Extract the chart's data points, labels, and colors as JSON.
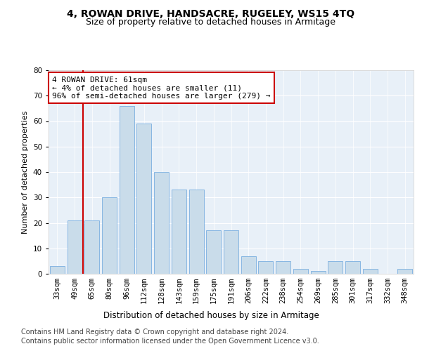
{
  "title": "4, ROWAN DRIVE, HANDSACRE, RUGELEY, WS15 4TQ",
  "subtitle": "Size of property relative to detached houses in Armitage",
  "xlabel": "Distribution of detached houses by size in Armitage",
  "ylabel": "Number of detached properties",
  "categories": [
    "33sqm",
    "49sqm",
    "65sqm",
    "80sqm",
    "96sqm",
    "112sqm",
    "128sqm",
    "143sqm",
    "159sqm",
    "175sqm",
    "191sqm",
    "206sqm",
    "222sqm",
    "238sqm",
    "254sqm",
    "269sqm",
    "285sqm",
    "301sqm",
    "317sqm",
    "332sqm",
    "348sqm"
  ],
  "values": [
    3,
    21,
    21,
    30,
    66,
    59,
    40,
    33,
    33,
    17,
    17,
    7,
    5,
    5,
    2,
    1,
    5,
    5,
    2,
    0,
    2
  ],
  "bar_color": "#c9dcea",
  "bar_edge_color": "#7aafe0",
  "vline_x": 1.5,
  "vline_color": "#cc0000",
  "annotation_text": "4 ROWAN DRIVE: 61sqm\n← 4% of detached houses are smaller (11)\n96% of semi-detached houses are larger (279) →",
  "annotation_box_color": "#ffffff",
  "annotation_box_edge_color": "#cc0000",
  "ylim": [
    0,
    80
  ],
  "yticks": [
    0,
    10,
    20,
    30,
    40,
    50,
    60,
    70,
    80
  ],
  "footer_line1": "Contains HM Land Registry data © Crown copyright and database right 2024.",
  "footer_line2": "Contains public sector information licensed under the Open Government Licence v3.0.",
  "plot_bg_color": "#e8f0f8",
  "fig_bg_color": "#ffffff",
  "title_fontsize": 10,
  "subtitle_fontsize": 9,
  "xlabel_fontsize": 8.5,
  "ylabel_fontsize": 8,
  "tick_fontsize": 7.5,
  "footer_fontsize": 7,
  "annotation_fontsize": 8
}
